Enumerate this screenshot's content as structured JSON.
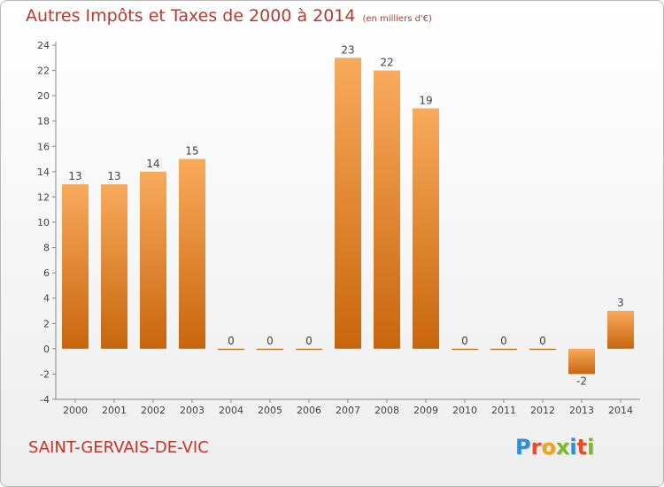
{
  "header": {
    "title": "Autres Impôts et Taxes de 2000 à 2014",
    "unit": "(en milliers d'€)"
  },
  "footer": {
    "commune": "SAINT-GERVAIS-DE-VIC",
    "brand": "Proxiti",
    "brand_letters": [
      {
        "char": "P",
        "color": "#2e8fd6"
      },
      {
        "char": "r",
        "color": "#e94c2c"
      },
      {
        "char": "o",
        "color": "#f2a11f"
      },
      {
        "char": "x",
        "color": "#7cb82f"
      },
      {
        "char": "i",
        "color": "#2e8fd6"
      },
      {
        "char": "t",
        "color": "#e94c2c"
      },
      {
        "char": "i",
        "color": "#7cb82f"
      }
    ]
  },
  "colors": {
    "bar_top": "#f9aa5c",
    "bar_bottom": "#c8660d",
    "title": "#b83a2e",
    "axis": "#888888"
  },
  "chart_data": {
    "type": "bar",
    "categories": [
      "2000",
      "2001",
      "2002",
      "2003",
      "2004",
      "2005",
      "2006",
      "2007",
      "2008",
      "2009",
      "2010",
      "2011",
      "2012",
      "2013",
      "2014"
    ],
    "values": [
      13,
      13,
      14,
      15,
      0,
      0,
      0,
      23,
      22,
      19,
      0,
      0,
      0,
      -2,
      3
    ],
    "data_labels": [
      "13",
      "13",
      "14",
      "15",
      "0",
      "0",
      "0",
      "23",
      "22",
      "19",
      "0",
      "0",
      "0",
      "-2",
      "3"
    ],
    "y_ticks": [
      -4,
      -2,
      0,
      2,
      4,
      6,
      8,
      10,
      12,
      14,
      16,
      18,
      20,
      22,
      24
    ],
    "ylim": [
      -4,
      24
    ],
    "grid": false,
    "legend": "none"
  }
}
